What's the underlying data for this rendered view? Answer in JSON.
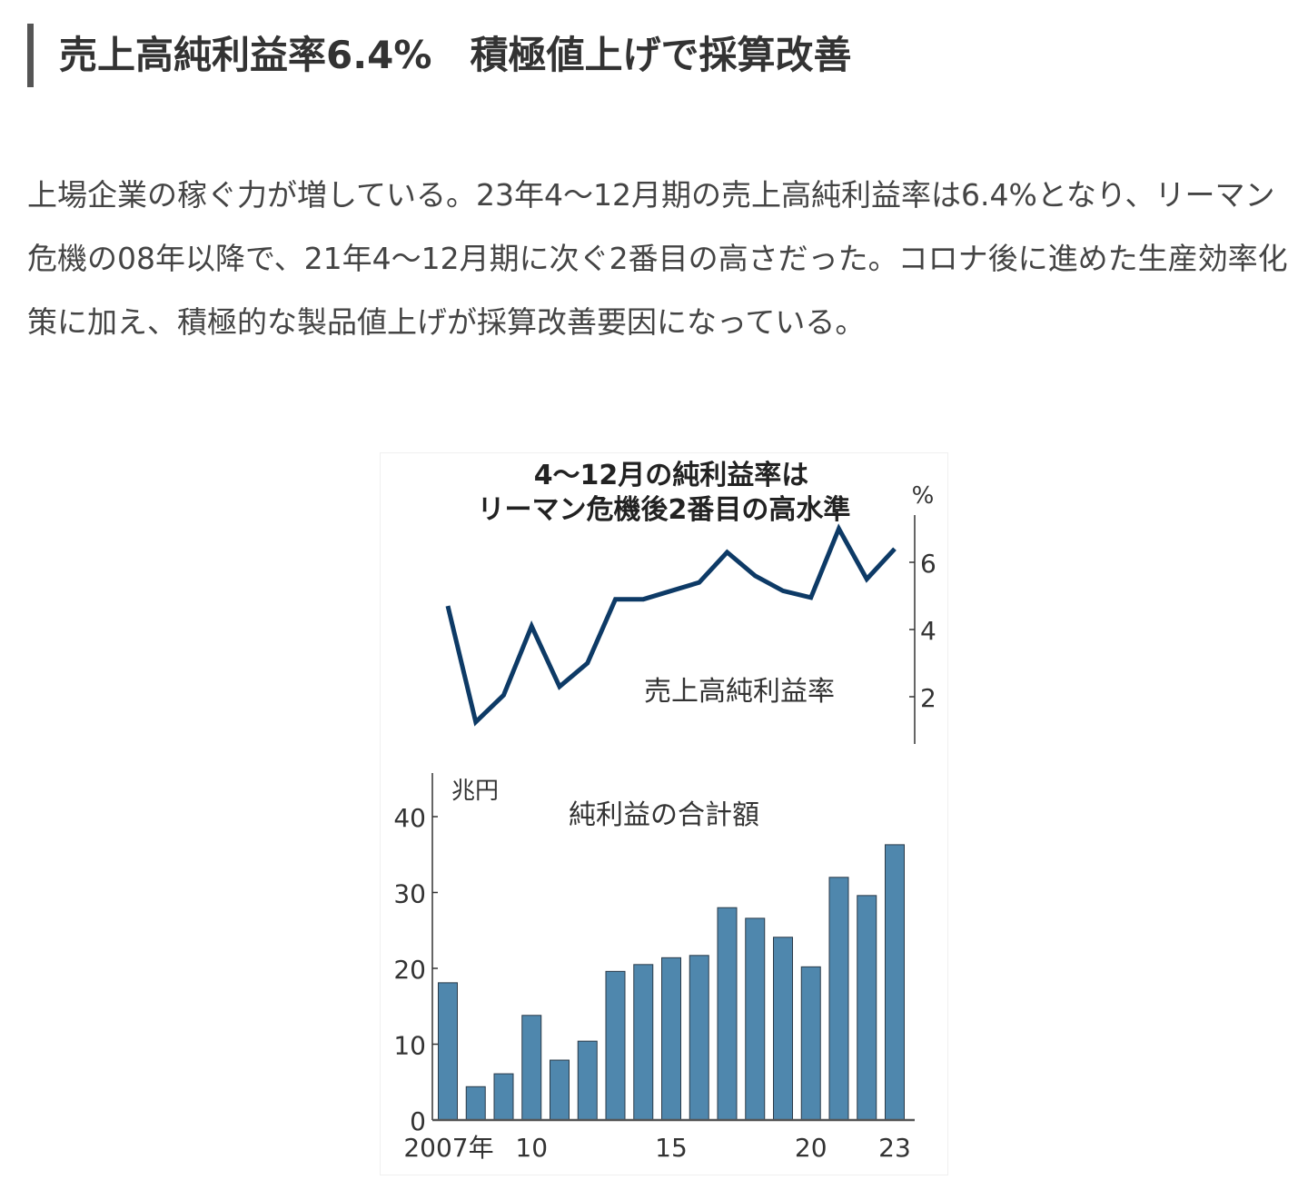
{
  "article": {
    "heading": "売上高純利益率6.4%　積極値上げで採算改善",
    "body": "上場企業の稼ぐ力が増している。23年4～12月期の売上高純利益率は6.4%となり、リーマン危機の08年以降で、21年4～12月期に次ぐ2番目の高さだった。コロナ後に進めた生産効率化策に加え、積極的な製品値上げが採算改善要因になっている。"
  },
  "chart_data": [
    {
      "type": "line",
      "title": "4～12月の純利益率は\nリーマン危機後2番目の高水準",
      "title_lines": [
        "4～12月の純利益率は",
        "リーマン危機後2番目の高水準"
      ],
      "series_label": "売上高純利益率",
      "ylabel": "%",
      "yticks": [
        "2",
        "4",
        "6"
      ],
      "ylim": [
        0,
        7.3
      ],
      "x": [
        2007,
        2008,
        2009,
        2010,
        2011,
        2012,
        2013,
        2014,
        2015,
        2016,
        2017,
        2018,
        2019,
        2020,
        2021,
        2022,
        2023
      ],
      "values": [
        4.7,
        1.25,
        2.05,
        4.1,
        2.3,
        3.0,
        4.9,
        4.9,
        5.15,
        5.4,
        6.3,
        5.6,
        5.15,
        4.95,
        7.0,
        5.5,
        6.4
      ],
      "color": "#0d3a66"
    },
    {
      "type": "bar",
      "title": "純利益の合計額",
      "ylabel": "兆円",
      "yticks": [
        "0",
        "10",
        "20",
        "30",
        "40"
      ],
      "ylim": [
        0,
        45
      ],
      "xtick_labels": [
        {
          "year": 2007,
          "label": "2007年"
        },
        {
          "year": 2010,
          "label": "10"
        },
        {
          "year": 2015,
          "label": "15"
        },
        {
          "year": 2020,
          "label": "20"
        },
        {
          "year": 2023,
          "label": "23"
        }
      ],
      "x": [
        2007,
        2008,
        2009,
        2010,
        2011,
        2012,
        2013,
        2014,
        2015,
        2016,
        2017,
        2018,
        2019,
        2020,
        2021,
        2022,
        2023
      ],
      "values": [
        18.1,
        4.4,
        6.1,
        13.8,
        7.9,
        10.4,
        19.6,
        20.5,
        21.4,
        21.7,
        28.0,
        26.6,
        24.1,
        20.2,
        32.0,
        29.6,
        36.3
      ],
      "color": "#4f87ad"
    }
  ]
}
